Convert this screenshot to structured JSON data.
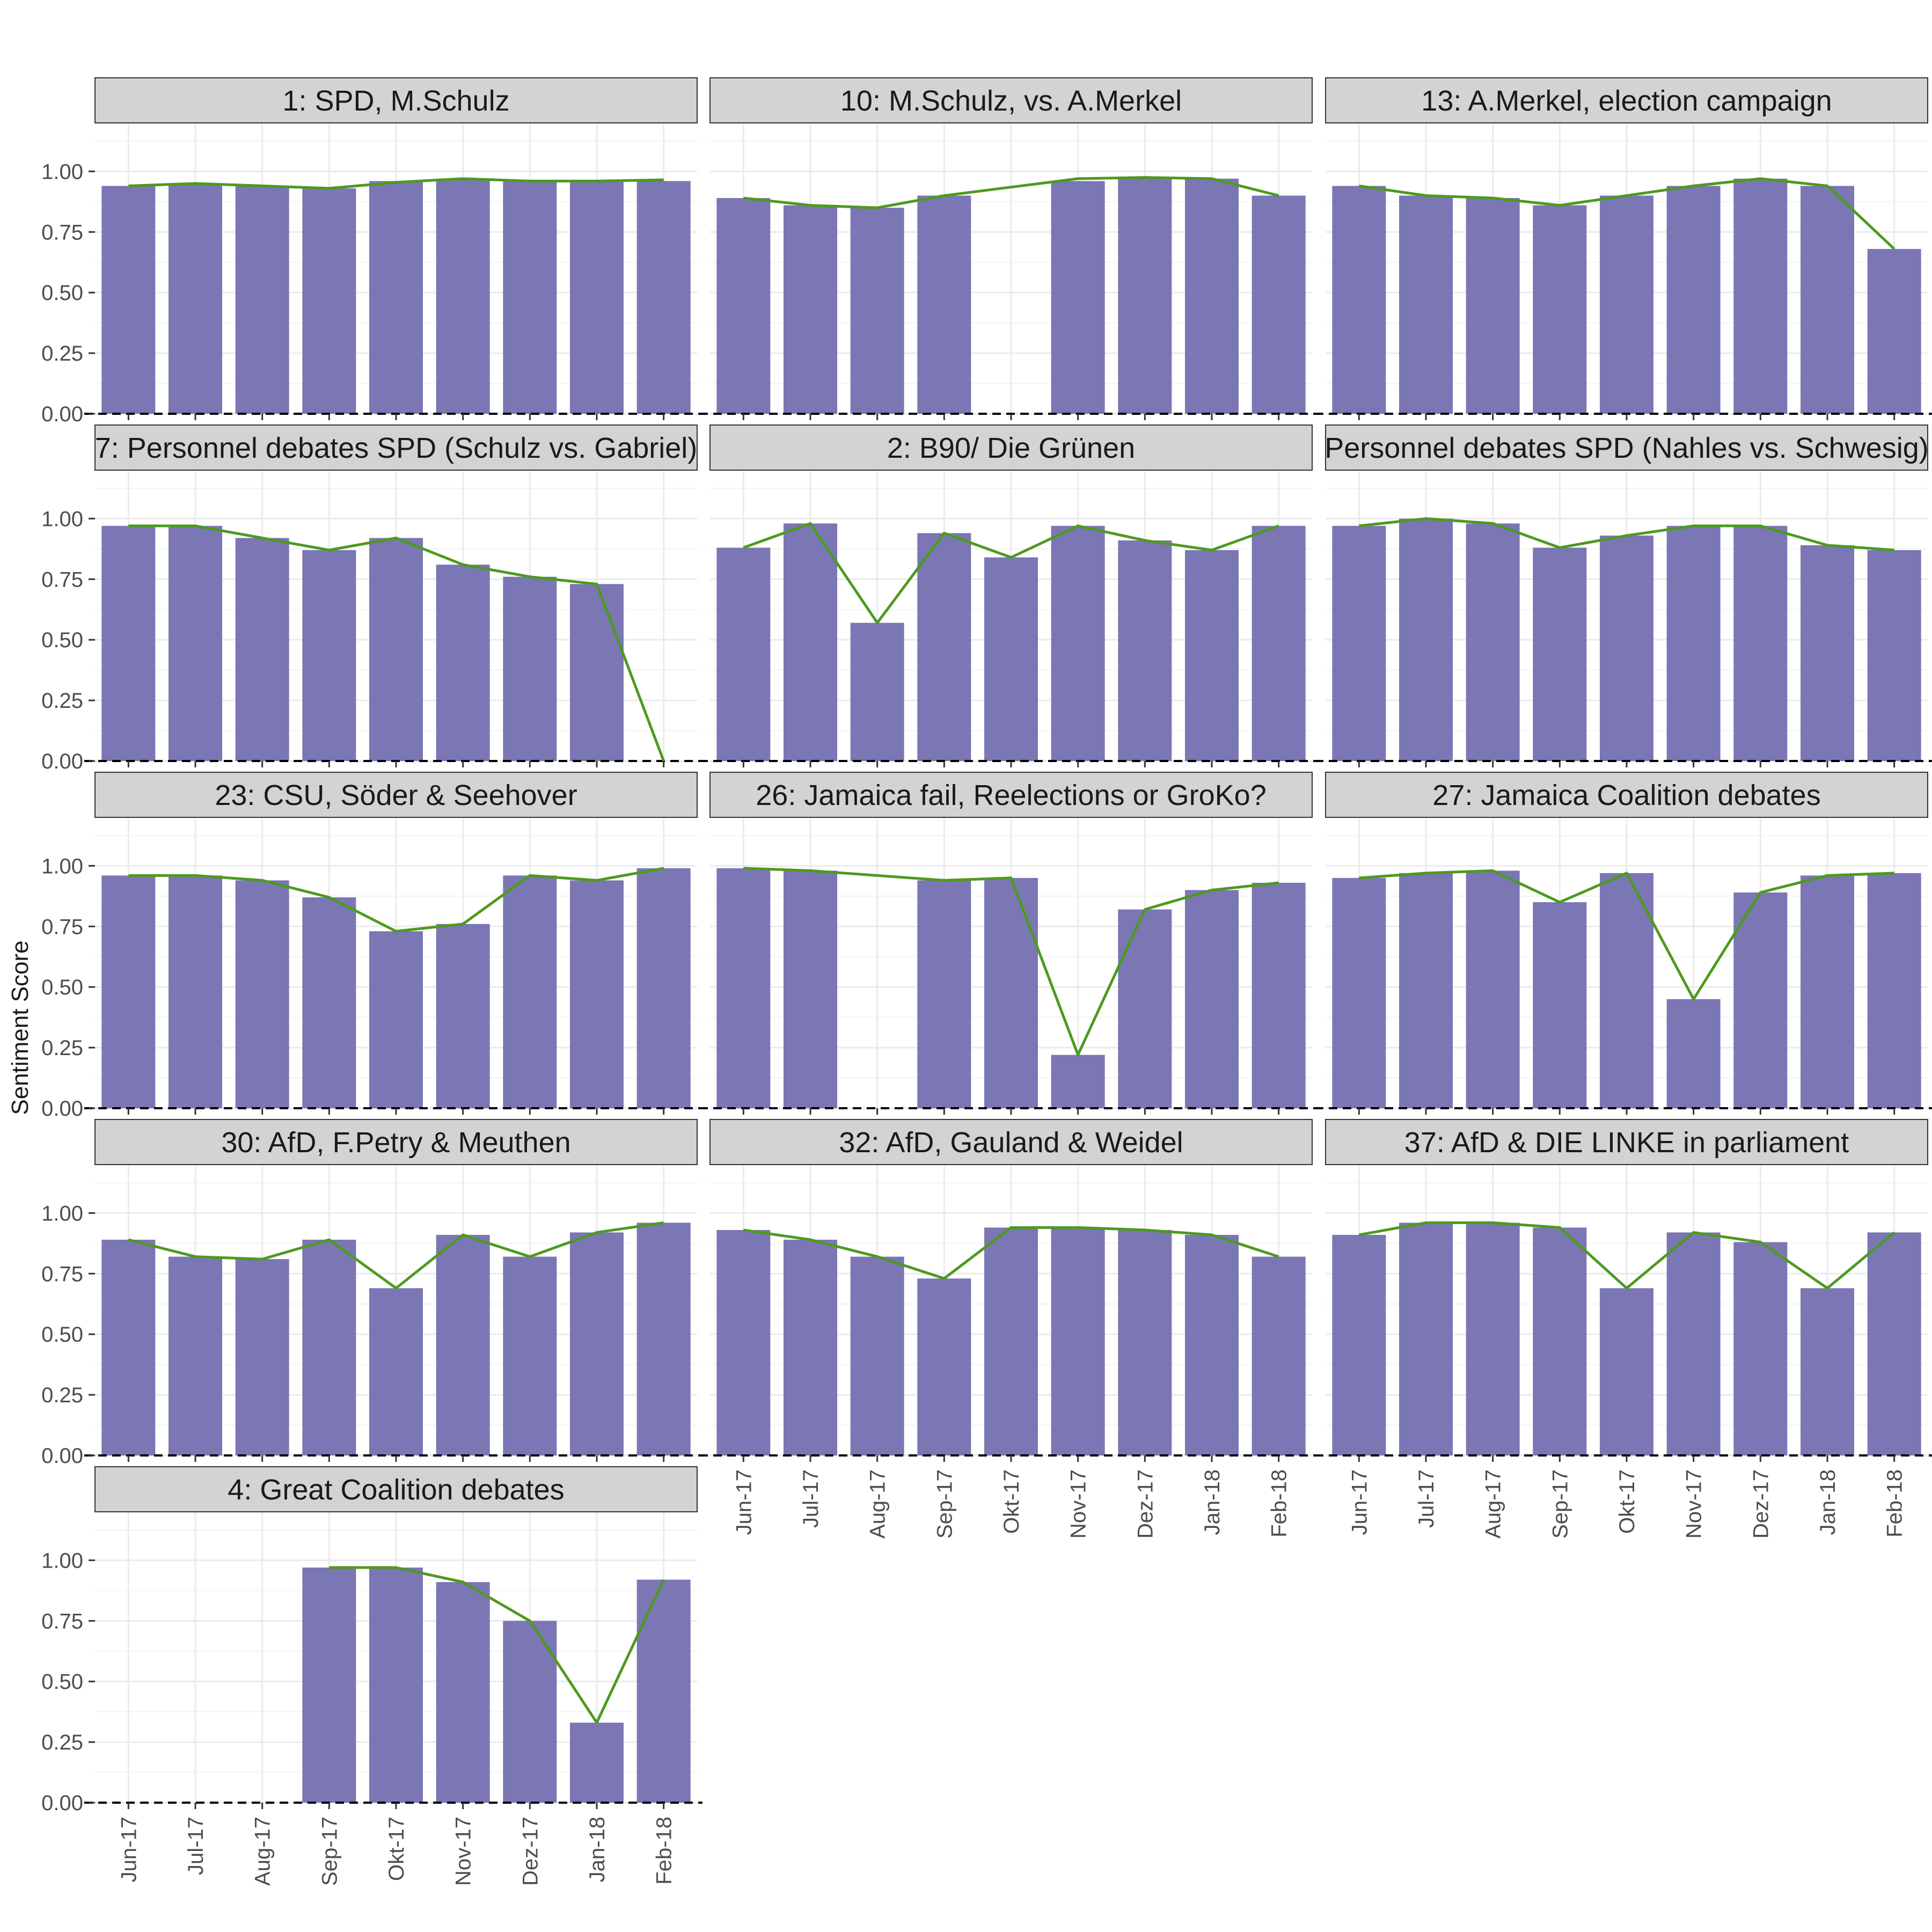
{
  "chart_data": {
    "type": "bar",
    "ylabel": "Sentiment Score",
    "xlabel": "",
    "ylim": [
      0,
      1.2
    ],
    "yticks": [
      "0.00",
      "0.25",
      "0.50",
      "0.75",
      "1.00"
    ],
    "categories": [
      "Jun-17",
      "Jul-17",
      "Aug-17",
      "Sep-17",
      "Okt-17",
      "Nov-17",
      "Dez-17",
      "Jan-18",
      "Feb-18"
    ],
    "colors": {
      "bar": "#7b76b4",
      "line": "#4d9a1f",
      "strip": "#d3d3d3",
      "baseline": "#000000",
      "grid": "#ebebeb"
    },
    "grid": true,
    "panels": [
      {
        "title": "1: SPD, M.Schulz",
        "bars": [
          0.94,
          0.95,
          0.94,
          0.93,
          0.96,
          0.97,
          0.96,
          0.96,
          0.96
        ],
        "line": [
          0.94,
          0.95,
          0.94,
          0.93,
          0.955,
          0.97,
          0.96,
          0.96,
          0.965
        ]
      },
      {
        "title": "10: M.Schulz, vs. A.Merkel",
        "bars": [
          0.89,
          0.86,
          0.85,
          0.9,
          null,
          0.96,
          0.97,
          0.97,
          0.9
        ],
        "line": [
          0.89,
          0.86,
          0.85,
          0.9,
          null,
          0.97,
          0.975,
          0.97,
          0.9
        ]
      },
      {
        "title": "13: A.Merkel, election campaign",
        "bars": [
          0.94,
          0.9,
          0.89,
          0.86,
          0.9,
          0.94,
          0.97,
          0.94,
          0.68
        ],
        "line": [
          0.94,
          0.9,
          0.89,
          0.86,
          0.9,
          0.94,
          0.97,
          0.94,
          0.68
        ]
      },
      {
        "title": "7: Personnel debates SPD (Schulz vs. Gabriel)",
        "bars": [
          0.97,
          0.97,
          0.92,
          0.87,
          0.92,
          0.81,
          0.76,
          0.73,
          null
        ],
        "line": [
          0.97,
          0.97,
          0.92,
          0.87,
          0.92,
          0.81,
          0.76,
          0.73,
          0.0
        ]
      },
      {
        "title": "2: B90/ Die Grünen",
        "bars": [
          0.88,
          0.98,
          0.57,
          0.94,
          0.84,
          0.97,
          0.91,
          0.87,
          0.97
        ],
        "line": [
          0.88,
          0.98,
          0.57,
          0.94,
          0.84,
          0.97,
          0.91,
          0.87,
          0.97
        ]
      },
      {
        "title": "Personnel debates SPD (Nahles vs. Schwesig)",
        "bars": [
          0.97,
          1.0,
          0.98,
          0.88,
          0.93,
          0.97,
          0.97,
          0.89,
          0.87
        ],
        "line": [
          0.97,
          1.0,
          0.98,
          0.88,
          0.93,
          0.97,
          0.97,
          0.89,
          0.87
        ]
      },
      {
        "title": "23: CSU, Söder & Seehover",
        "bars": [
          0.96,
          0.96,
          0.94,
          0.87,
          0.73,
          0.76,
          0.96,
          0.94,
          0.99
        ],
        "line": [
          0.96,
          0.96,
          0.94,
          0.87,
          0.73,
          0.76,
          0.96,
          0.94,
          0.99
        ]
      },
      {
        "title": "26: Jamaica fail, Reelections or GroKo?",
        "bars": [
          0.99,
          0.98,
          null,
          0.94,
          0.95,
          0.22,
          0.82,
          0.9,
          0.93
        ],
        "line": [
          0.99,
          0.98,
          null,
          0.94,
          0.95,
          0.22,
          0.82,
          0.9,
          0.93
        ]
      },
      {
        "title": "27: Jamaica Coalition debates",
        "bars": [
          0.95,
          0.97,
          0.98,
          0.85,
          0.97,
          0.45,
          0.89,
          0.96,
          0.97
        ],
        "line": [
          0.95,
          0.97,
          0.98,
          0.85,
          0.97,
          0.45,
          0.89,
          0.96,
          0.97
        ]
      },
      {
        "title": "30: AfD, F.Petry & Meuthen",
        "bars": [
          0.89,
          0.82,
          0.81,
          0.89,
          0.69,
          0.91,
          0.82,
          0.92,
          0.96
        ],
        "line": [
          0.89,
          0.82,
          0.81,
          0.89,
          0.69,
          0.91,
          0.82,
          0.92,
          0.96
        ]
      },
      {
        "title": "32: AfD, Gauland & Weidel",
        "bars": [
          0.93,
          0.89,
          0.82,
          0.73,
          0.94,
          0.94,
          0.93,
          0.91,
          0.82
        ],
        "line": [
          0.93,
          0.89,
          0.82,
          0.73,
          0.94,
          0.94,
          0.93,
          0.91,
          0.82
        ]
      },
      {
        "title": "37: AfD & DIE LINKE in parliament",
        "bars": [
          0.91,
          0.96,
          0.96,
          0.94,
          0.69,
          0.92,
          0.88,
          0.69,
          0.92
        ],
        "line": [
          0.91,
          0.96,
          0.96,
          0.94,
          0.69,
          0.92,
          0.88,
          0.69,
          0.92
        ]
      },
      {
        "title": "4: Great Coalition debates",
        "bars": [
          null,
          null,
          null,
          0.97,
          0.97,
          0.91,
          0.75,
          0.33,
          0.92
        ],
        "line": [
          null,
          null,
          null,
          0.97,
          0.97,
          0.91,
          0.75,
          0.33,
          0.92
        ]
      }
    ]
  }
}
